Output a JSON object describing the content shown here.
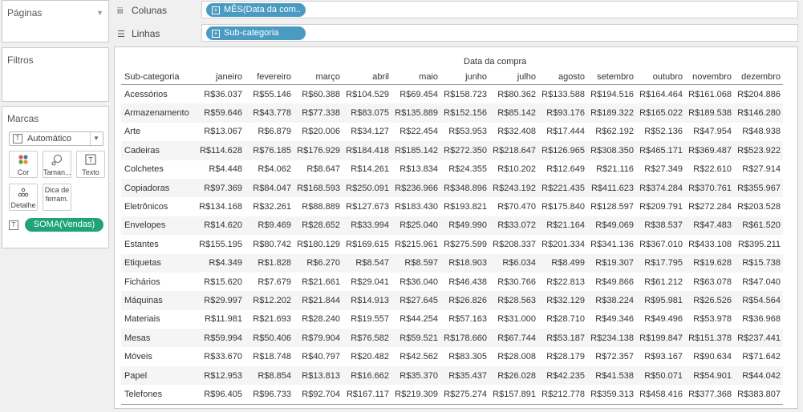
{
  "sidebar": {
    "paginas_title": "Páginas",
    "filtros_title": "Filtros",
    "marcas_title": "Marcas",
    "mark_type": "Automático",
    "buttons": {
      "cor": "Cor",
      "tamanho": "Taman...",
      "texto": "Texto",
      "detalhe": "Detalhe",
      "dica": "Dica de ferram."
    },
    "measure_pill": "SOMA(Vendas)"
  },
  "shelves": {
    "colunas_label": "Colunas",
    "colunas_pill": "MÊS(Data da com..",
    "linhas_label": "Linhas",
    "linhas_pill": "Sub-categoria"
  },
  "table": {
    "column_field_title": "Data da compra",
    "row_header": "Sub-categoria",
    "months": [
      "janeiro",
      "fevereiro",
      "março",
      "abril",
      "maio",
      "junho",
      "julho",
      "agosto",
      "setembro",
      "outubro",
      "novembro",
      "dezembro"
    ],
    "rows": [
      {
        "name": "Acessórios",
        "values": [
          "R$36.037",
          "R$55.146",
          "R$60.388",
          "R$104.529",
          "R$69.454",
          "R$158.723",
          "R$80.362",
          "R$133.588",
          "R$194.516",
          "R$164.464",
          "R$161.068",
          "R$204.886"
        ]
      },
      {
        "name": "Armazenamento",
        "values": [
          "R$59.646",
          "R$43.778",
          "R$77.338",
          "R$83.075",
          "R$135.889",
          "R$152.156",
          "R$85.142",
          "R$93.176",
          "R$189.322",
          "R$165.022",
          "R$189.538",
          "R$146.280"
        ]
      },
      {
        "name": "Arte",
        "values": [
          "R$13.067",
          "R$6.879",
          "R$20.006",
          "R$34.127",
          "R$22.454",
          "R$53.953",
          "R$32.408",
          "R$17.444",
          "R$62.192",
          "R$52.136",
          "R$47.954",
          "R$48.938"
        ]
      },
      {
        "name": "Cadeiras",
        "values": [
          "R$114.628",
          "R$76.185",
          "R$176.929",
          "R$184.418",
          "R$185.142",
          "R$272.350",
          "R$218.647",
          "R$126.965",
          "R$308.350",
          "R$465.171",
          "R$369.487",
          "R$523.922"
        ]
      },
      {
        "name": "Colchetes",
        "values": [
          "R$4.448",
          "R$4.062",
          "R$8.647",
          "R$14.261",
          "R$13.834",
          "R$24.355",
          "R$10.202",
          "R$12.649",
          "R$21.116",
          "R$27.349",
          "R$22.610",
          "R$27.914"
        ]
      },
      {
        "name": "Copiadoras",
        "values": [
          "R$97.369",
          "R$84.047",
          "R$168.593",
          "R$250.091",
          "R$236.966",
          "R$348.896",
          "R$243.192",
          "R$221.435",
          "R$411.623",
          "R$374.284",
          "R$370.761",
          "R$355.967"
        ]
      },
      {
        "name": "Eletrônicos",
        "values": [
          "R$134.168",
          "R$32.261",
          "R$88.889",
          "R$127.673",
          "R$183.430",
          "R$193.821",
          "R$70.470",
          "R$175.840",
          "R$128.597",
          "R$209.791",
          "R$272.284",
          "R$203.528"
        ]
      },
      {
        "name": "Envelopes",
        "values": [
          "R$14.620",
          "R$9.469",
          "R$28.652",
          "R$33.994",
          "R$25.040",
          "R$49.990",
          "R$33.072",
          "R$21.164",
          "R$49.069",
          "R$38.537",
          "R$47.483",
          "R$61.520"
        ]
      },
      {
        "name": "Estantes",
        "values": [
          "R$155.195",
          "R$80.742",
          "R$180.129",
          "R$169.615",
          "R$215.961",
          "R$275.599",
          "R$208.337",
          "R$201.334",
          "R$341.136",
          "R$367.010",
          "R$433.108",
          "R$395.211"
        ]
      },
      {
        "name": "Etiquetas",
        "values": [
          "R$4.349",
          "R$1.828",
          "R$6.270",
          "R$8.547",
          "R$8.597",
          "R$18.903",
          "R$6.034",
          "R$8.499",
          "R$19.307",
          "R$17.795",
          "R$19.628",
          "R$15.738"
        ]
      },
      {
        "name": "Fichários",
        "values": [
          "R$15.620",
          "R$7.679",
          "R$21.661",
          "R$29.041",
          "R$36.040",
          "R$46.438",
          "R$30.766",
          "R$22.813",
          "R$49.866",
          "R$61.212",
          "R$63.078",
          "R$47.040"
        ]
      },
      {
        "name": "Máquinas",
        "values": [
          "R$29.997",
          "R$12.202",
          "R$21.844",
          "R$14.913",
          "R$27.645",
          "R$26.826",
          "R$28.563",
          "R$32.129",
          "R$38.224",
          "R$95.981",
          "R$26.526",
          "R$54.564"
        ]
      },
      {
        "name": "Materiais",
        "values": [
          "R$11.981",
          "R$21.693",
          "R$28.240",
          "R$19.557",
          "R$44.254",
          "R$57.163",
          "R$31.000",
          "R$28.710",
          "R$49.346",
          "R$49.496",
          "R$53.978",
          "R$36.968"
        ]
      },
      {
        "name": "Mesas",
        "values": [
          "R$59.994",
          "R$50.406",
          "R$79.904",
          "R$76.582",
          "R$59.521",
          "R$178.660",
          "R$67.744",
          "R$53.187",
          "R$234.138",
          "R$199.847",
          "R$151.378",
          "R$237.441"
        ]
      },
      {
        "name": "Móveis",
        "values": [
          "R$33.670",
          "R$18.748",
          "R$40.797",
          "R$20.482",
          "R$42.562",
          "R$83.305",
          "R$28.008",
          "R$28.179",
          "R$72.357",
          "R$93.167",
          "R$90.634",
          "R$71.642"
        ]
      },
      {
        "name": "Papel",
        "values": [
          "R$12.953",
          "R$8.854",
          "R$13.813",
          "R$16.662",
          "R$35.370",
          "R$35.437",
          "R$26.028",
          "R$42.235",
          "R$41.538",
          "R$50.071",
          "R$54.901",
          "R$44.042"
        ]
      },
      {
        "name": "Telefones",
        "values": [
          "R$96.405",
          "R$96.733",
          "R$92.704",
          "R$167.117",
          "R$219.309",
          "R$275.274",
          "R$157.891",
          "R$212.778",
          "R$359.313",
          "R$458.416",
          "R$377.368",
          "R$383.807"
        ]
      }
    ]
  }
}
